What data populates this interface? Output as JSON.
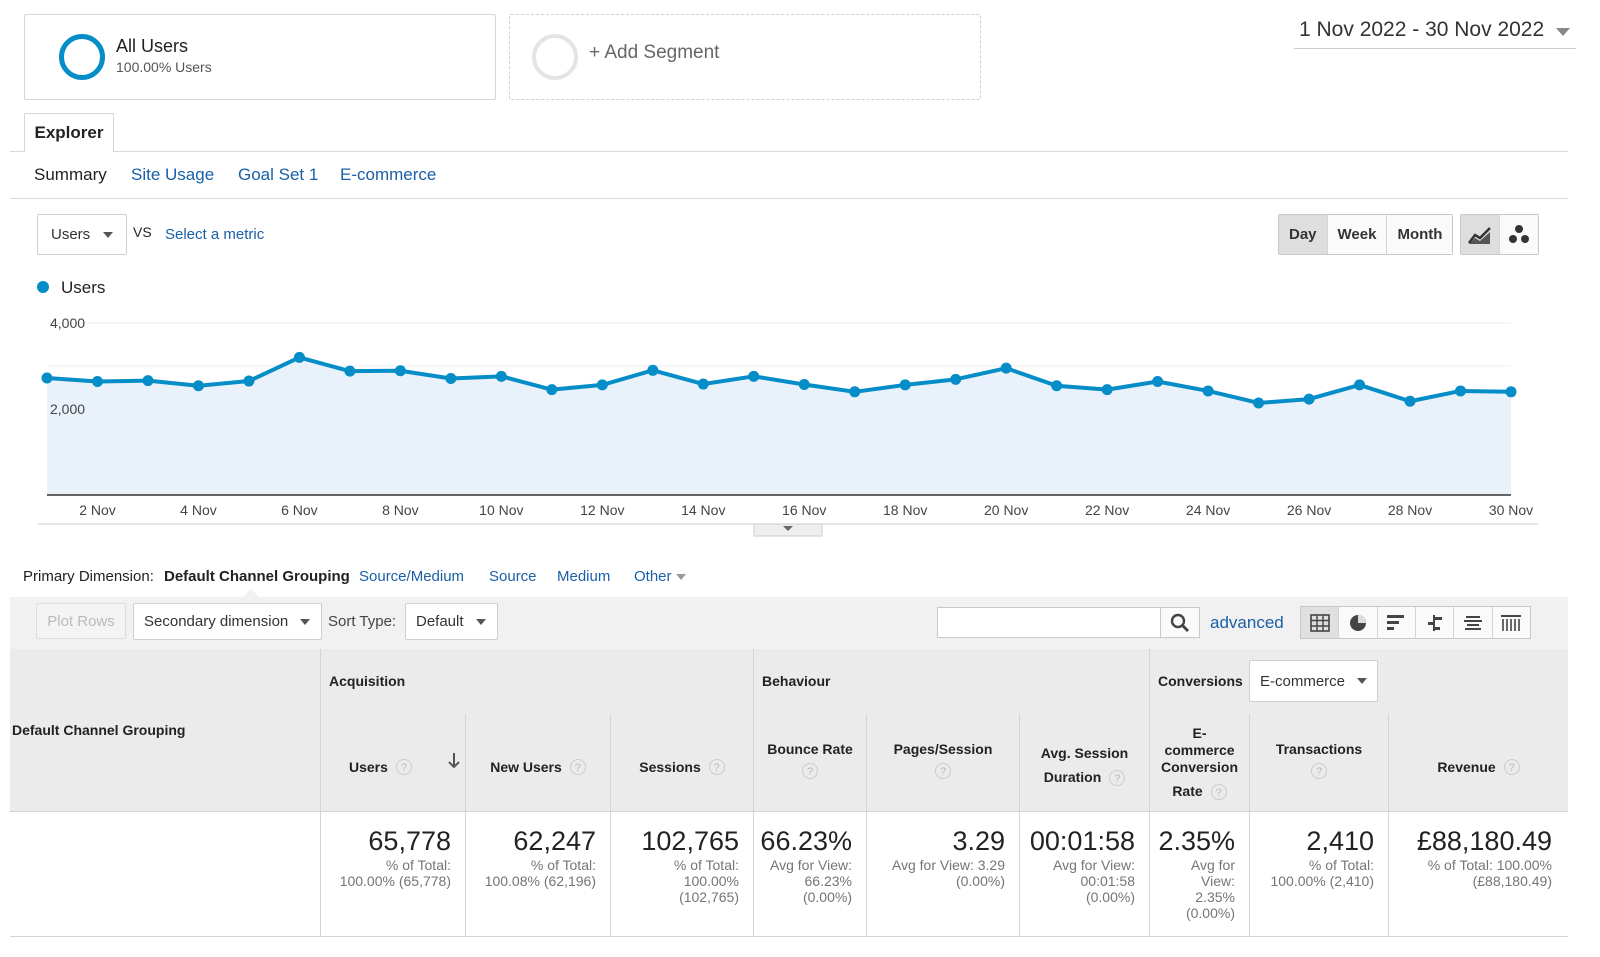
{
  "segments": {
    "active": {
      "title": "All Users",
      "subtitle": "100.00% Users"
    },
    "add_label": "+ Add Segment"
  },
  "date_range": "1 Nov 2022 - 30 Nov 2022",
  "tabs": {
    "explorer": "Explorer"
  },
  "subtabs": [
    "Summary",
    "Site Usage",
    "Goal Set 1",
    "E-commerce"
  ],
  "metric_selector": {
    "value": "Users",
    "vs": "VS",
    "select_metric": "Select a metric"
  },
  "granularity": {
    "day": "Day",
    "week": "Week",
    "month": "Month",
    "active": "Day"
  },
  "chart_data": {
    "type": "area",
    "series": [
      {
        "name": "Users",
        "color": "#058dc7",
        "values": [
          2720,
          2640,
          2660,
          2540,
          2650,
          3200,
          2880,
          2890,
          2710,
          2760,
          2450,
          2560,
          2900,
          2580,
          2760,
          2570,
          2400,
          2560,
          2690,
          2950,
          2540,
          2450,
          2640,
          2420,
          2140,
          2230,
          2560,
          2180,
          2420,
          2400
        ]
      }
    ],
    "x_days": [
      1,
      2,
      3,
      4,
      5,
      6,
      7,
      8,
      9,
      10,
      11,
      12,
      13,
      14,
      15,
      16,
      17,
      18,
      19,
      20,
      21,
      22,
      23,
      24,
      25,
      26,
      27,
      28,
      29,
      30
    ],
    "x_tick_labels": [
      "2 Nov",
      "4 Nov",
      "6 Nov",
      "8 Nov",
      "10 Nov",
      "12 Nov",
      "14 Nov",
      "16 Nov",
      "18 Nov",
      "20 Nov",
      "22 Nov",
      "24 Nov",
      "26 Nov",
      "28 Nov",
      "30 Nov"
    ],
    "y_tick_labels": [
      "4,000",
      "2,000"
    ],
    "ylim": [
      0,
      4000
    ],
    "legend": "top-left"
  },
  "primary_dimension": {
    "label": "Primary Dimension:",
    "active": "Default Channel Grouping",
    "options": [
      "Source/Medium",
      "Source",
      "Medium",
      "Other"
    ]
  },
  "toolbar": {
    "plot_rows": "Plot Rows",
    "secondary_dimension": "Secondary dimension",
    "sort_type_label": "Sort Type:",
    "sort_type_value": "Default",
    "search_placeholder": "",
    "advanced": "advanced"
  },
  "table": {
    "dimension_header": "Default Channel Grouping",
    "groups": {
      "acquisition": "Acquisition",
      "behaviour": "Behaviour",
      "conversions": "Conversions",
      "conversions_select": "E-commerce"
    },
    "columns": [
      "Users",
      "New Users",
      "Sessions",
      "Bounce Rate",
      "Pages/Session",
      "Avg. Session Duration",
      "E-commerce Conversion Rate",
      "Transactions",
      "Revenue"
    ],
    "col_header_lines": {
      "avg_session_l1": "Avg. Session",
      "avg_session_l2": "Duration",
      "ecr_l1": "E-",
      "ecr_l2": "commerce",
      "ecr_l3": "Conversion",
      "ecr_l4": "Rate"
    },
    "totals": [
      {
        "value": "65,778",
        "sub": [
          "% of Total:",
          "100.00% (65,778)"
        ]
      },
      {
        "value": "62,247",
        "sub": [
          "% of Total:",
          "100.08% (62,196)"
        ]
      },
      {
        "value": "102,765",
        "sub": [
          "% of Total:",
          "100.00%",
          "(102,765)"
        ]
      },
      {
        "value": "66.23%",
        "sub": [
          "Avg for View:",
          "66.23%",
          "(0.00%)"
        ]
      },
      {
        "value": "3.29",
        "sub": [
          "Avg for View: 3.29",
          "(0.00%)"
        ]
      },
      {
        "value": "00:01:58",
        "sub": [
          "Avg for View:",
          "00:01:58",
          "(0.00%)"
        ]
      },
      {
        "value": "2.35%",
        "sub": [
          "Avg for",
          "View:",
          "2.35%",
          "(0.00%)"
        ]
      },
      {
        "value": "2,410",
        "sub": [
          "% of Total:",
          "100.00% (2,410)"
        ]
      },
      {
        "value": "£88,180.49",
        "sub": [
          "% of Total: 100.00%",
          "(£88,180.49)"
        ]
      }
    ]
  }
}
